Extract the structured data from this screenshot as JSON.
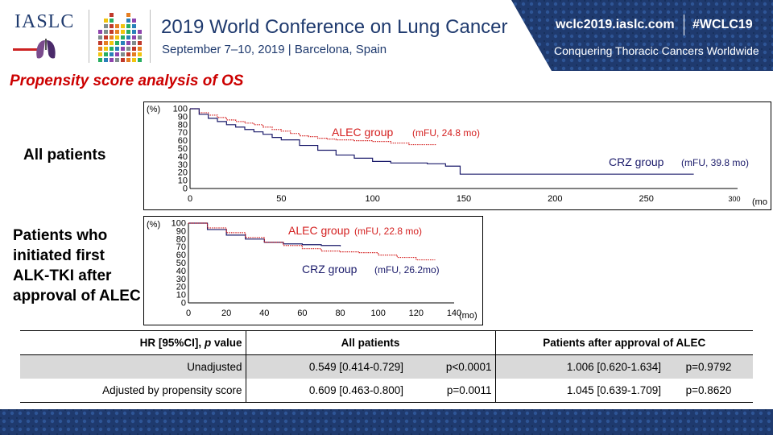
{
  "header": {
    "logo_text": "IASLC",
    "conference_title": "2019 World Conference on Lung Cancer",
    "conference_dates": "September 7–10, 2019 | Barcelona, Spain",
    "website": "wclc2019.iaslc.com",
    "hashtag": "#WCLC19",
    "tagline": "Conquering Thoracic Cancers Worldwide"
  },
  "colors": {
    "navy": "#1f3a6e",
    "title_red": "#cc0000",
    "alec_red": "#d42020",
    "crz_navy": "#1a1a6a"
  },
  "icons": [
    "iaslc-lungs-logo-icon",
    "barcelona-cathedral-icon"
  ],
  "slide_title": "Propensity score analysis of OS",
  "row_labels": {
    "all": "All patients",
    "after_lines": [
      "Patients who",
      "initiated first",
      "ALK-TKI after",
      "approval of ALEC"
    ]
  },
  "chart_data": [
    {
      "type": "line",
      "name": "all-patients",
      "y_unit_label": "(%)",
      "x_unit_label": "(mo",
      "xlim": [
        0,
        300
      ],
      "ylim": [
        0,
        100
      ],
      "x_ticks": [
        0,
        50,
        100,
        150,
        200,
        250,
        300
      ],
      "y_ticks": [
        0,
        10,
        20,
        30,
        40,
        50,
        60,
        70,
        80,
        90,
        100
      ],
      "series": [
        {
          "name": "ALEC group",
          "annotation": "(mFU, 24.8 mo)",
          "style": "dotted",
          "x": [
            0,
            5,
            10,
            15,
            20,
            25,
            30,
            35,
            40,
            45,
            50,
            55,
            60,
            65,
            70,
            75,
            80,
            90,
            100,
            110,
            120,
            130,
            135
          ],
          "y": [
            100,
            95,
            92,
            89,
            86,
            84,
            82,
            80,
            77,
            74,
            72,
            69,
            66,
            65,
            63,
            62,
            61,
            60,
            59,
            57,
            55,
            55,
            55
          ]
        },
        {
          "name": "CRZ group",
          "annotation": "(mFU, 39.8 mo)",
          "style": "solid",
          "x": [
            0,
            5,
            10,
            15,
            20,
            25,
            30,
            35,
            40,
            45,
            50,
            60,
            70,
            80,
            90,
            100,
            110,
            120,
            130,
            140,
            147,
            148,
            170,
            200,
            240,
            276
          ],
          "y": [
            100,
            93,
            88,
            84,
            80,
            77,
            74,
            71,
            68,
            64,
            61,
            54,
            48,
            42,
            38,
            34,
            32,
            32,
            31,
            28,
            28,
            18,
            18,
            18,
            18,
            18
          ]
        }
      ]
    },
    {
      "type": "line",
      "name": "after-approval",
      "y_unit_label": "(%)",
      "x_unit_label": "(mo)",
      "xlim": [
        0,
        140
      ],
      "ylim": [
        0,
        100
      ],
      "x_ticks": [
        0,
        20,
        40,
        60,
        80,
        100,
        120,
        140
      ],
      "y_ticks": [
        0,
        10,
        20,
        30,
        40,
        50,
        60,
        70,
        80,
        90,
        100
      ],
      "series": [
        {
          "name": "CRZ group",
          "annotation": "(mFU, 26.2mo)",
          "style": "solid",
          "x": [
            0,
            10,
            20,
            30,
            40,
            50,
            60,
            70,
            80
          ],
          "y": [
            100,
            92,
            85,
            80,
            76,
            74,
            73,
            72,
            71
          ]
        },
        {
          "name": "ALEC group",
          "annotation": "(mFU, 22.8 mo)",
          "style": "dotted",
          "x": [
            0,
            10,
            20,
            30,
            40,
            50,
            60,
            70,
            80,
            90,
            100,
            110,
            120,
            130
          ],
          "y": [
            100,
            94,
            88,
            82,
            76,
            72,
            68,
            65,
            64,
            63,
            60,
            57,
            54,
            54
          ]
        }
      ]
    }
  ],
  "hr_table": {
    "headers": [
      "HR [95%CI], p value",
      "All patients",
      "Patients after approval of ALEC"
    ],
    "header_first_main": "HR [95%CI],",
    "header_first_italic": "p",
    "header_first_tail": "value",
    "rows": [
      {
        "label": "Unadjusted",
        "all_hr": "0.549 [0.414-0.729]",
        "all_p": "p<0.0001",
        "after_hr": "1.006 [0.620-1.634]",
        "after_p": "p=0.9792"
      },
      {
        "label": "Adjusted by propensity score",
        "all_hr": "0.609 [0.463-0.800]",
        "all_p": "p=0.0011",
        "after_hr": "1.045 [0.639-1.709]",
        "after_p": "p=0.8620"
      }
    ]
  }
}
